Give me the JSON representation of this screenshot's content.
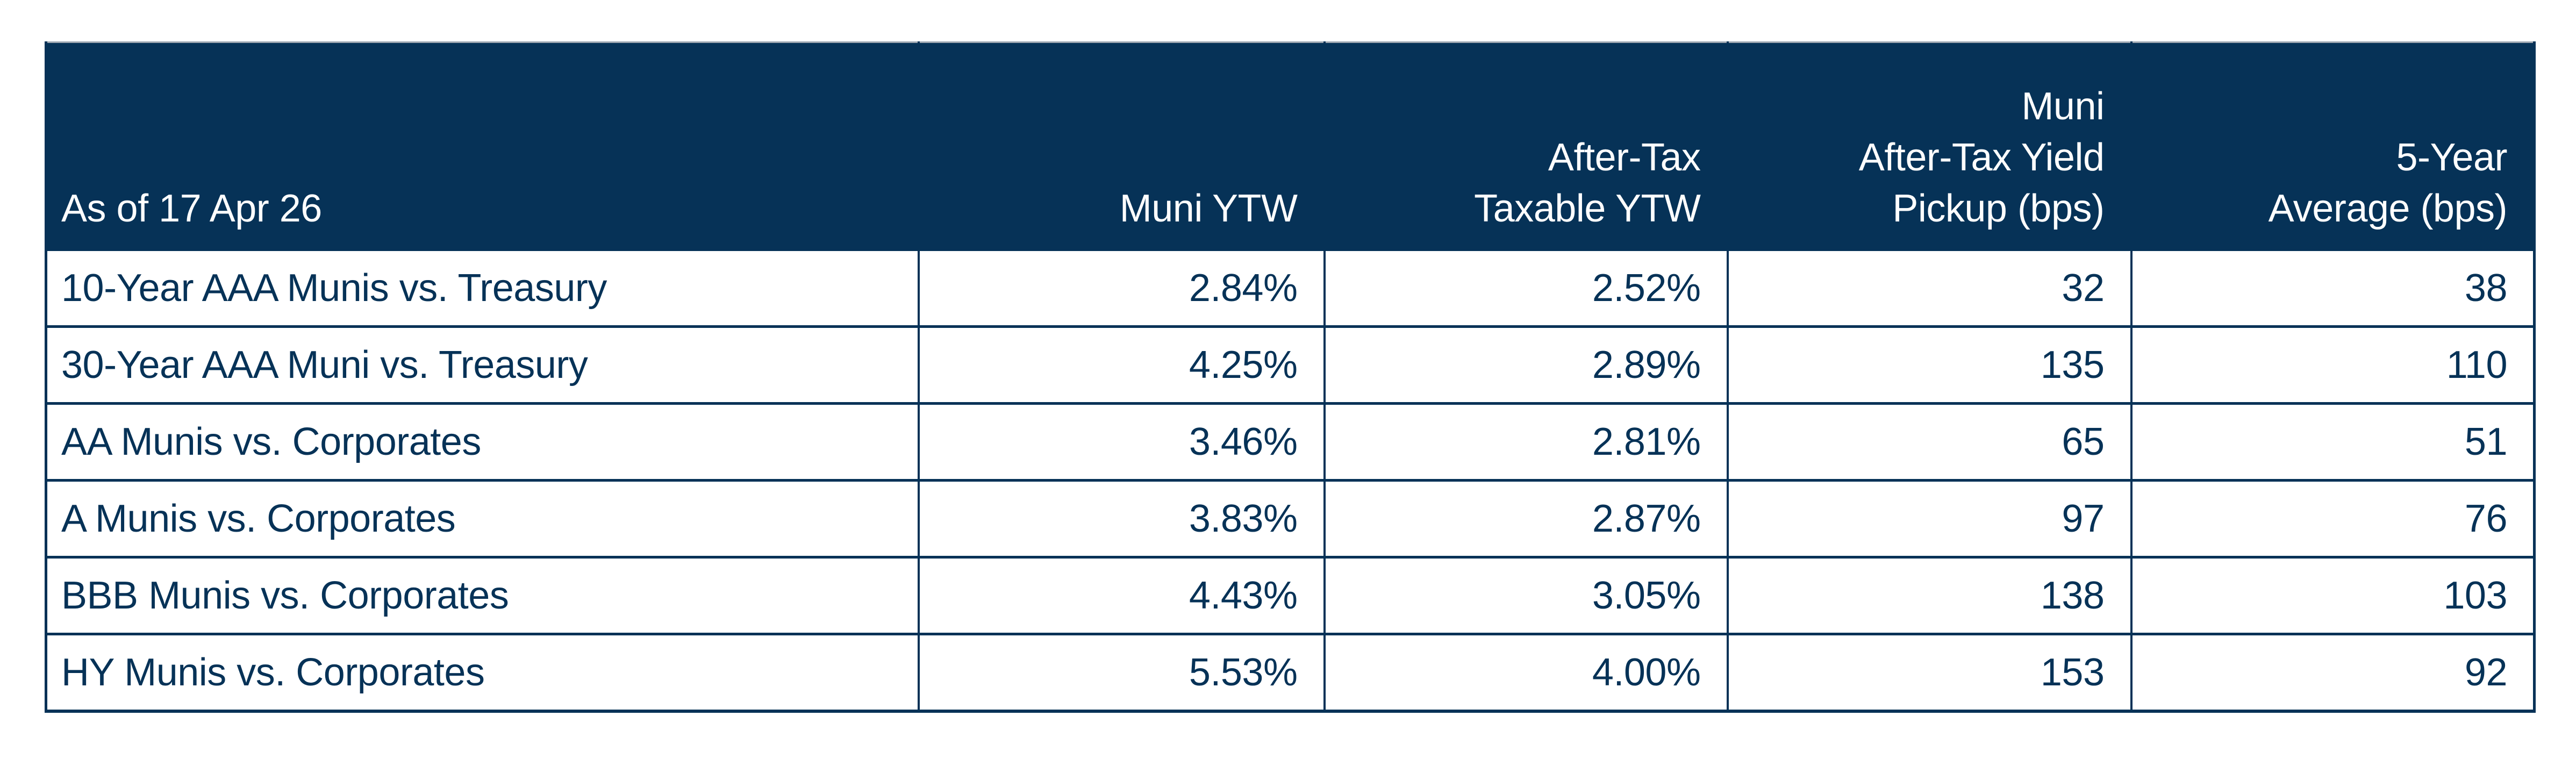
{
  "page": {
    "background": "#ffffff"
  },
  "colors": {
    "navy": "#063257",
    "header_background": "#063257",
    "header_text": "#ffffff",
    "body_text": "#063257",
    "gridline": "#063257",
    "top_hairline": "#9fa8b2",
    "row_background": "#ffffff"
  },
  "as_of_date": "17 Apr 26",
  "chart_data": {
    "type": "table",
    "title": "",
    "legend_position": "none",
    "grid": true,
    "columns": [
      "As of 17 Apr 26",
      "Muni YTW",
      "After-Tax\nTaxable YTW",
      "Muni\nAfter-Tax Yield\nPickup (bps)",
      "5-Year\nAverage (bps)"
    ],
    "rows": [
      [
        "10-Year AAA Munis vs. Treasury",
        "2.84%",
        "2.52%",
        "32",
        "38"
      ],
      [
        "30-Year AAA Muni vs. Treasury",
        "4.25%",
        "2.89%",
        "135",
        "110"
      ],
      [
        "AA Munis vs. Corporates",
        "3.46%",
        "2.81%",
        "65",
        "51"
      ],
      [
        "A Munis vs. Corporates",
        "3.83%",
        "2.87%",
        "97",
        "76"
      ],
      [
        "BBB Munis vs. Corporates",
        "4.43%",
        "3.05%",
        "138",
        "103"
      ],
      [
        "HY Munis vs. Corporates",
        "5.53%",
        "4.00%",
        "153",
        "92"
      ]
    ],
    "numeric": {
      "categories": [
        "10-Year AAA Munis vs. Treasury",
        "30-Year AAA Muni vs. Treasury",
        "AA Munis vs. Corporates",
        "A Munis vs. Corporates",
        "BBB Munis vs. Corporates",
        "HY Munis vs. Corporates"
      ],
      "muni_ytw_pct": [
        2.84,
        4.25,
        3.46,
        3.83,
        4.43,
        5.53
      ],
      "after_tax_taxable_ytw_pct": [
        2.52,
        2.89,
        2.81,
        2.87,
        3.05,
        4.0
      ],
      "muni_after_tax_yield_pickup_bps": [
        32,
        135,
        65,
        97,
        138,
        153
      ],
      "five_year_average_bps": [
        38,
        110,
        51,
        76,
        103,
        92
      ]
    }
  }
}
